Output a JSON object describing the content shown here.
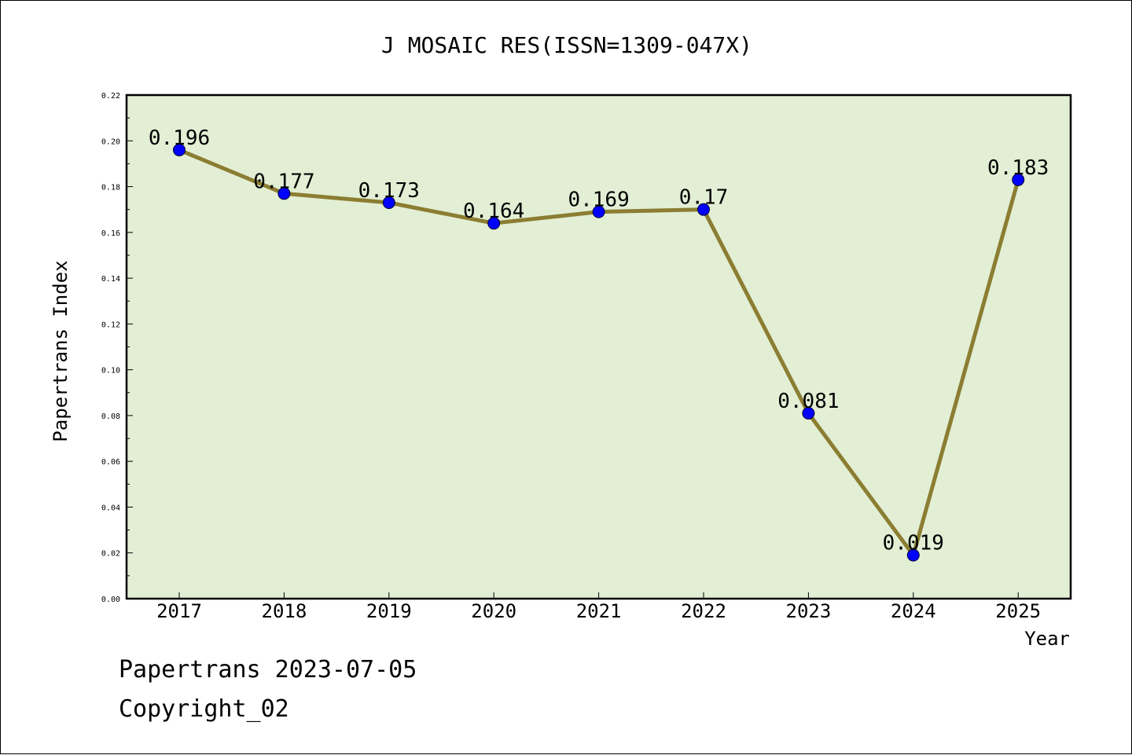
{
  "chart_data": {
    "type": "line",
    "title": "J MOSAIC RES(ISSN=1309-047X)",
    "xlabel": "Year",
    "ylabel": "Papertrans Index",
    "categories": [
      "2017",
      "2018",
      "2019",
      "2020",
      "2021",
      "2022",
      "2023",
      "2024",
      "2025"
    ],
    "values": [
      0.196,
      0.177,
      0.173,
      0.164,
      0.169,
      0.17,
      0.081,
      0.019,
      0.183
    ],
    "data_labels": [
      "0.196",
      "0.177",
      "0.173",
      "0.164",
      "0.169",
      "0.17",
      "0.081",
      "0.019",
      "0.183"
    ],
    "ylim": [
      0,
      0.22
    ],
    "yticks": [
      "0.00",
      "0.02",
      "0.04",
      "0.06",
      "0.08",
      "0.10",
      "0.12",
      "0.14",
      "0.16",
      "0.18",
      "0.20",
      "0.22"
    ],
    "grid": false,
    "legend": "none",
    "colors": {
      "plot_background": "#e2efd5",
      "line": "#8b7d32",
      "marker": "#0000ff"
    }
  },
  "footer": {
    "line1": "Papertrans 2023-07-05",
    "line2": "Copyright_02"
  }
}
